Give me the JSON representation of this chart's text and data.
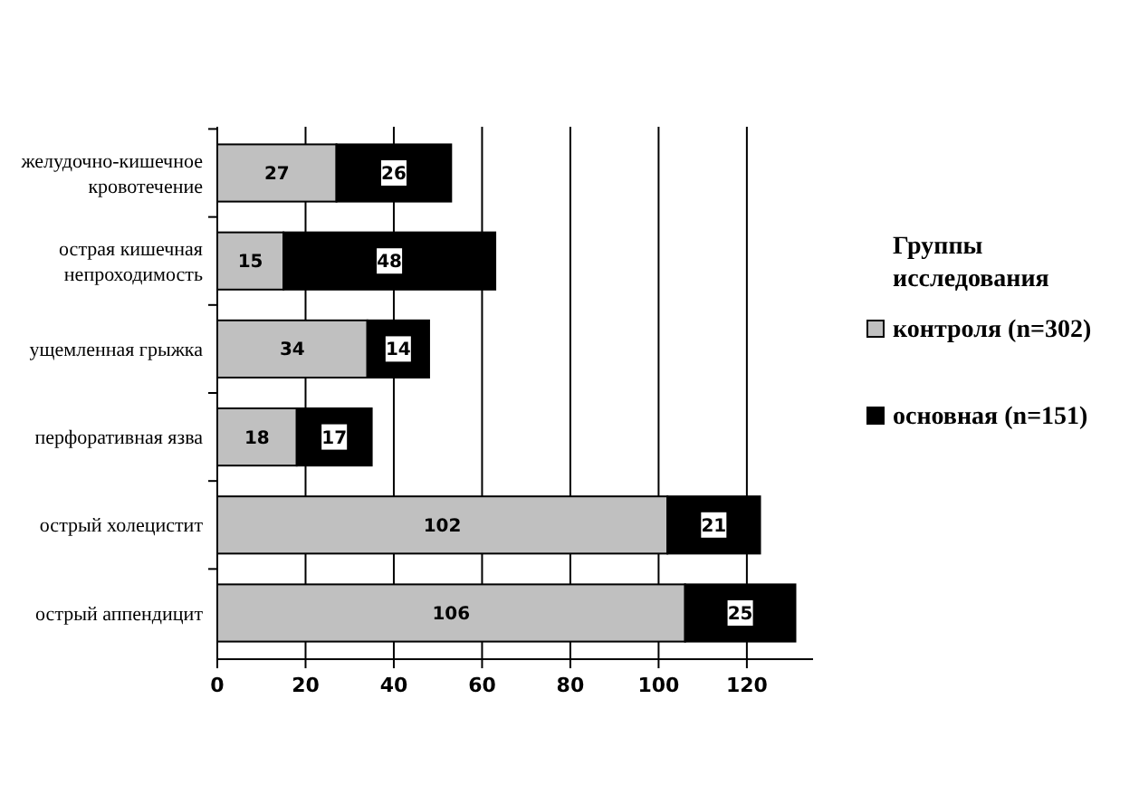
{
  "chart_data": {
    "type": "bar",
    "orientation": "horizontal",
    "stacked": true,
    "data_labels": true,
    "grid": "x",
    "legend": "right",
    "legend_title": "Группы исследования",
    "categories": [
      "желудочно-кишечное кровотечение",
      "острая кишечная непроходимость",
      "ущемленная грыжка",
      "перфоративная язва",
      "острый холецистит",
      "острый аппендицит"
    ],
    "series": [
      {
        "name": "контроля (n=302)",
        "color": "#c0c0c0",
        "values": [
          27,
          15,
          34,
          18,
          102,
          106
        ]
      },
      {
        "name": "основная (n=151)",
        "color": "#000000",
        "values": [
          26,
          48,
          14,
          17,
          21,
          25
        ]
      }
    ],
    "xlim": [
      0,
      135
    ],
    "xticks": [
      0,
      20,
      40,
      60,
      80,
      100,
      120
    ]
  }
}
